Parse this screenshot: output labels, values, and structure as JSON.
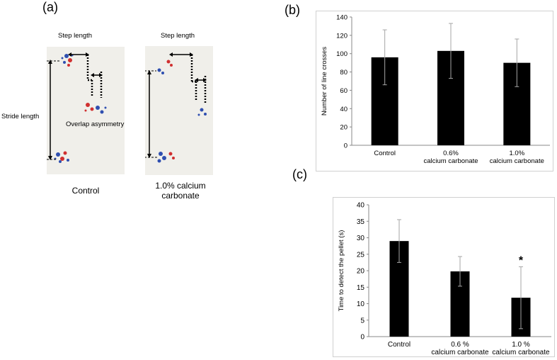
{
  "panels": {
    "a": "(a)",
    "b": "(b)",
    "c": "(c)"
  },
  "gait_photos": {
    "control": {
      "step_length": "Step length",
      "stride_length": "Stride length",
      "overlap_asymmetry": "Overlap asymmetry",
      "caption": "Control"
    },
    "treated": {
      "step_length": "Step length",
      "caption_line1": "1.0% calcium",
      "caption_line2": "carbonate"
    }
  },
  "colors": {
    "bar": "#000000",
    "error_bar": "#a6a6a6",
    "paw_red": "#d03030",
    "paw_blue": "#2f4fb0"
  },
  "chart_data": [
    {
      "type": "bar",
      "categories": [
        [
          "Control"
        ],
        [
          "0.6%",
          "calcium carbonate"
        ],
        [
          "1.0%",
          "calcium carbonate"
        ]
      ],
      "values": [
        96,
        103,
        90
      ],
      "errors": [
        30,
        30,
        26
      ],
      "ylabel": "Number of line crosses",
      "xlabel": "",
      "ylim": [
        0,
        140
      ],
      "yticks": [
        0,
        20,
        40,
        60,
        80,
        100,
        120,
        140
      ],
      "grid": false
    },
    {
      "type": "bar",
      "categories": [
        [
          "Control"
        ],
        [
          "0.6 %",
          "calcium carbonate"
        ],
        [
          "1.0 %",
          "calcium carbonate"
        ]
      ],
      "values": [
        29,
        19.8,
        11.8
      ],
      "errors": [
        6.5,
        4.5,
        9.4
      ],
      "ylabel": "Time to detect the pellet (s)",
      "xlabel": "",
      "ylim": [
        0,
        40
      ],
      "yticks": [
        0,
        5,
        10,
        15,
        20,
        25,
        30,
        35,
        40
      ],
      "grid": false,
      "significance": [
        "",
        "",
        "*"
      ]
    }
  ]
}
